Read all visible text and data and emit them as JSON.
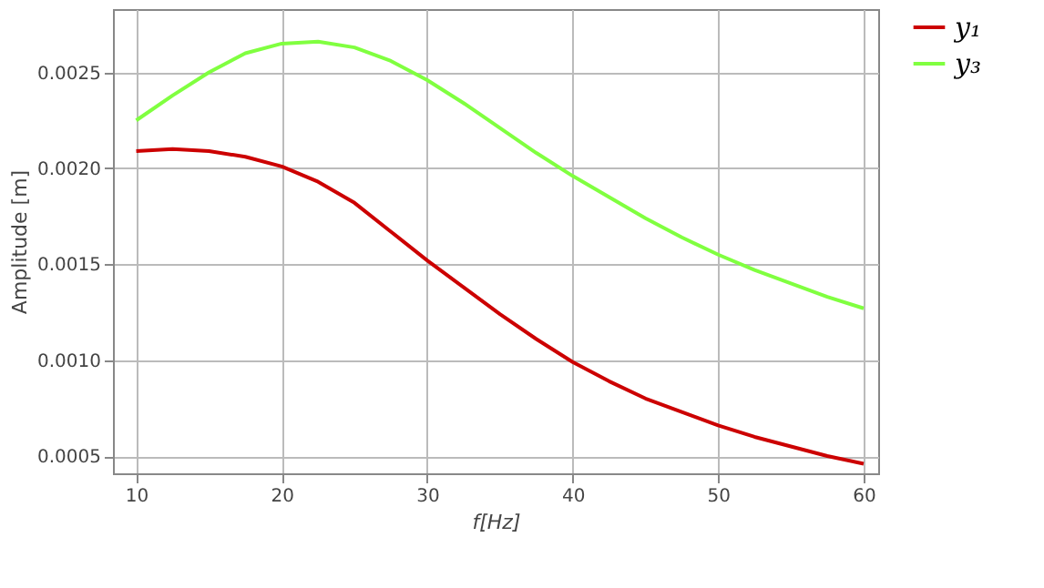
{
  "chart_data": {
    "type": "line",
    "xlabel": "f[Hz]",
    "ylabel": "Amplitude [m]",
    "xlim": [
      8.4,
      61
    ],
    "ylim": [
      0.00041,
      0.00283
    ],
    "xticks": [
      10,
      20,
      30,
      40,
      50,
      60
    ],
    "yticks": [
      0.0005,
      {
        "value": 0.001,
        "label": "0.0010"
      },
      0.0015,
      {
        "value": 0.002,
        "label": "0.0020"
      },
      0.0025
    ],
    "grid": true,
    "legend": "right",
    "marker": "none",
    "line_style": "solid",
    "x": [
      10,
      12.5,
      15,
      17.5,
      20,
      22.5,
      25,
      27.5,
      30,
      32.5,
      35,
      37.5,
      40,
      42.5,
      45,
      47.5,
      50,
      52.5,
      55,
      57.5,
      60
    ],
    "series": [
      {
        "name": "y₁",
        "color": "#cc0000",
        "values": [
          0.00209,
          0.0021,
          0.00209,
          0.00206,
          0.00201,
          0.00193,
          0.00182,
          0.00167,
          0.00152,
          0.00138,
          0.00124,
          0.00111,
          0.00099,
          0.00089,
          0.0008,
          0.00073,
          0.00066,
          0.0006,
          0.00055,
          0.0005,
          0.00046
        ]
      },
      {
        "name": "y₃",
        "color": "#80ff40",
        "values": [
          0.00225,
          0.00238,
          0.0025,
          0.0026,
          0.00265,
          0.00266,
          0.00263,
          0.00256,
          0.00246,
          0.00234,
          0.00221,
          0.00208,
          0.00196,
          0.00185,
          0.00174,
          0.00164,
          0.00155,
          0.00147,
          0.0014,
          0.00133,
          0.00127
        ]
      }
    ]
  }
}
